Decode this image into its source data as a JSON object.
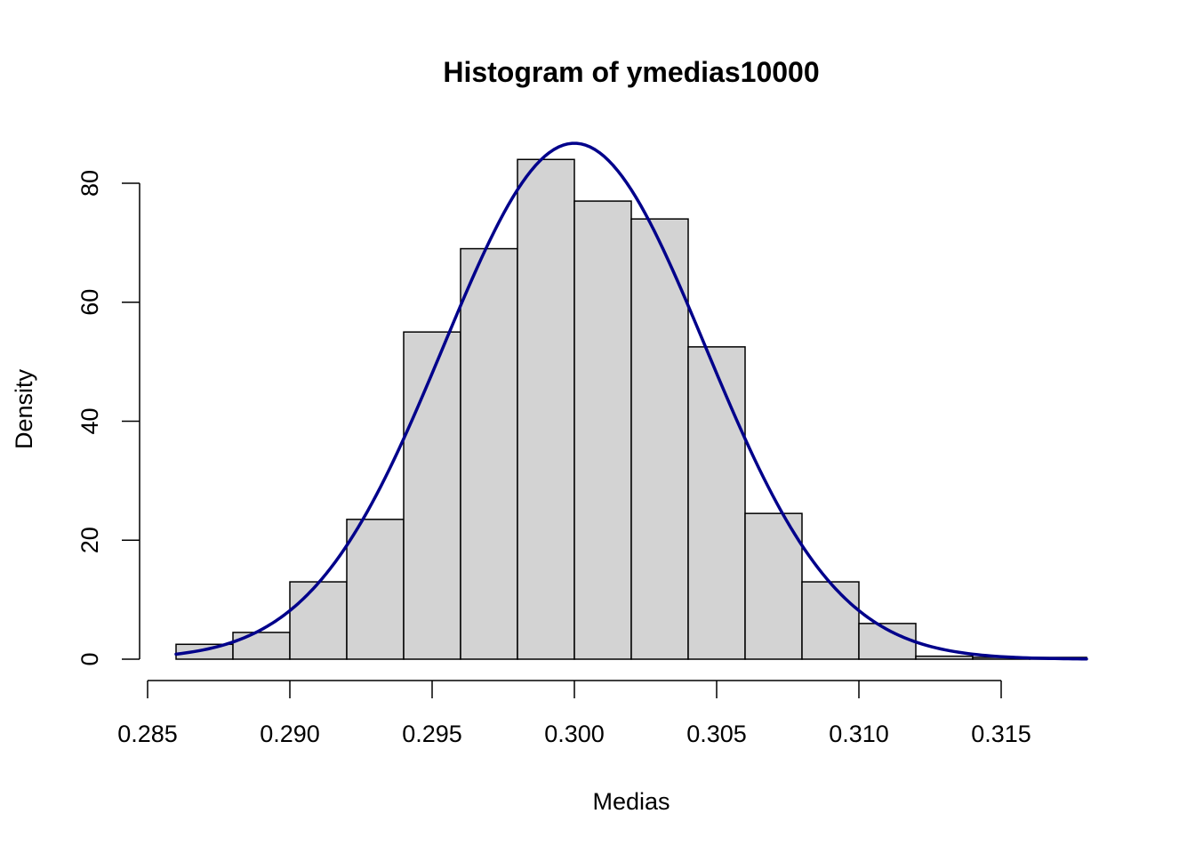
{
  "chart_data": {
    "type": "bar",
    "title": "Histogram of ymedias10000",
    "xlabel": "Medias",
    "ylabel": "Density",
    "xlim": [
      0.285,
      0.318
    ],
    "ylim": [
      0,
      90
    ],
    "x_ticks": [
      "0.285",
      "0.290",
      "0.295",
      "0.300",
      "0.305",
      "0.310",
      "0.315"
    ],
    "x_tick_values": [
      0.285,
      0.29,
      0.295,
      0.3,
      0.305,
      0.31,
      0.315
    ],
    "y_ticks": [
      "0",
      "20",
      "40",
      "60",
      "80"
    ],
    "y_tick_values": [
      0,
      20,
      40,
      60,
      80
    ],
    "bins": [
      {
        "start": 0.286,
        "end": 0.288,
        "density": 2.5
      },
      {
        "start": 0.288,
        "end": 0.29,
        "density": 4.5
      },
      {
        "start": 0.29,
        "end": 0.292,
        "density": 13
      },
      {
        "start": 0.292,
        "end": 0.294,
        "density": 23.5
      },
      {
        "start": 0.294,
        "end": 0.296,
        "density": 55
      },
      {
        "start": 0.296,
        "end": 0.298,
        "density": 69
      },
      {
        "start": 0.298,
        "end": 0.3,
        "density": 84
      },
      {
        "start": 0.3,
        "end": 0.302,
        "density": 77
      },
      {
        "start": 0.302,
        "end": 0.304,
        "density": 74
      },
      {
        "start": 0.304,
        "end": 0.306,
        "density": 52.5
      },
      {
        "start": 0.306,
        "end": 0.308,
        "density": 24.5
      },
      {
        "start": 0.308,
        "end": 0.31,
        "density": 13
      },
      {
        "start": 0.31,
        "end": 0.312,
        "density": 6
      },
      {
        "start": 0.312,
        "end": 0.314,
        "density": 0.5
      },
      {
        "start": 0.314,
        "end": 0.316,
        "density": 0.3
      },
      {
        "start": 0.316,
        "end": 0.318,
        "density": 0.3
      }
    ],
    "density_curve": {
      "type": "normal",
      "mean": 0.3,
      "sd": 0.0046,
      "x_range": [
        0.286,
        0.318
      ]
    },
    "colors": {
      "bar_fill": "#d3d3d3",
      "bar_stroke": "#000000",
      "curve": "#00008b"
    },
    "grid": false,
    "legend": "none"
  }
}
